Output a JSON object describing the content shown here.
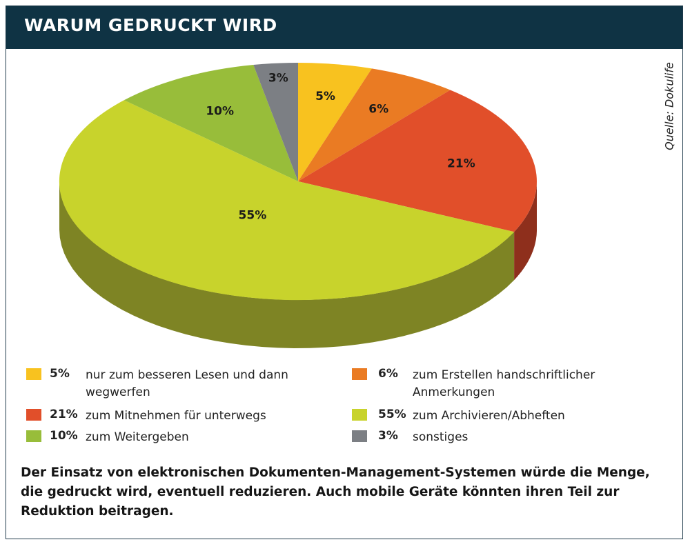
{
  "header": {
    "title": "WARUM GEDRUCKT WIRD"
  },
  "source": "Quelle: Dokulife",
  "chart_data": {
    "type": "pie",
    "title": "WARUM GEDRUCKT WIRD",
    "slices": [
      {
        "label": "nur zum besseren Lesen und dann wegwerfen",
        "value": 5,
        "display": "5%",
        "color": "#f8c21f"
      },
      {
        "label": "zum Erstellen handschriftlicher Anmerkungen",
        "value": 6,
        "display": "6%",
        "color": "#ea7b23"
      },
      {
        "label": "zum Mitnehmen für unterwegs",
        "value": 21,
        "display": "21%",
        "color": "#e14f2a"
      },
      {
        "label": "zum Archivieren/Abheften",
        "value": 55,
        "display": "55%",
        "color": "#c8d32c"
      },
      {
        "label": "zum Weitergeben",
        "value": 10,
        "display": "10%",
        "color": "#98bd3a"
      },
      {
        "label": "sonstiges",
        "value": 3,
        "display": "3%",
        "color": "#7c7f84"
      }
    ],
    "legend_position": "bottom"
  },
  "footnote": "Der Einsatz von elektronischen Dokumenten-Management-Systemen würde die Menge, die gedruckt wird, eventuell reduzieren. Auch mobile Geräte könnten ihren Teil zur Reduktion beitragen."
}
